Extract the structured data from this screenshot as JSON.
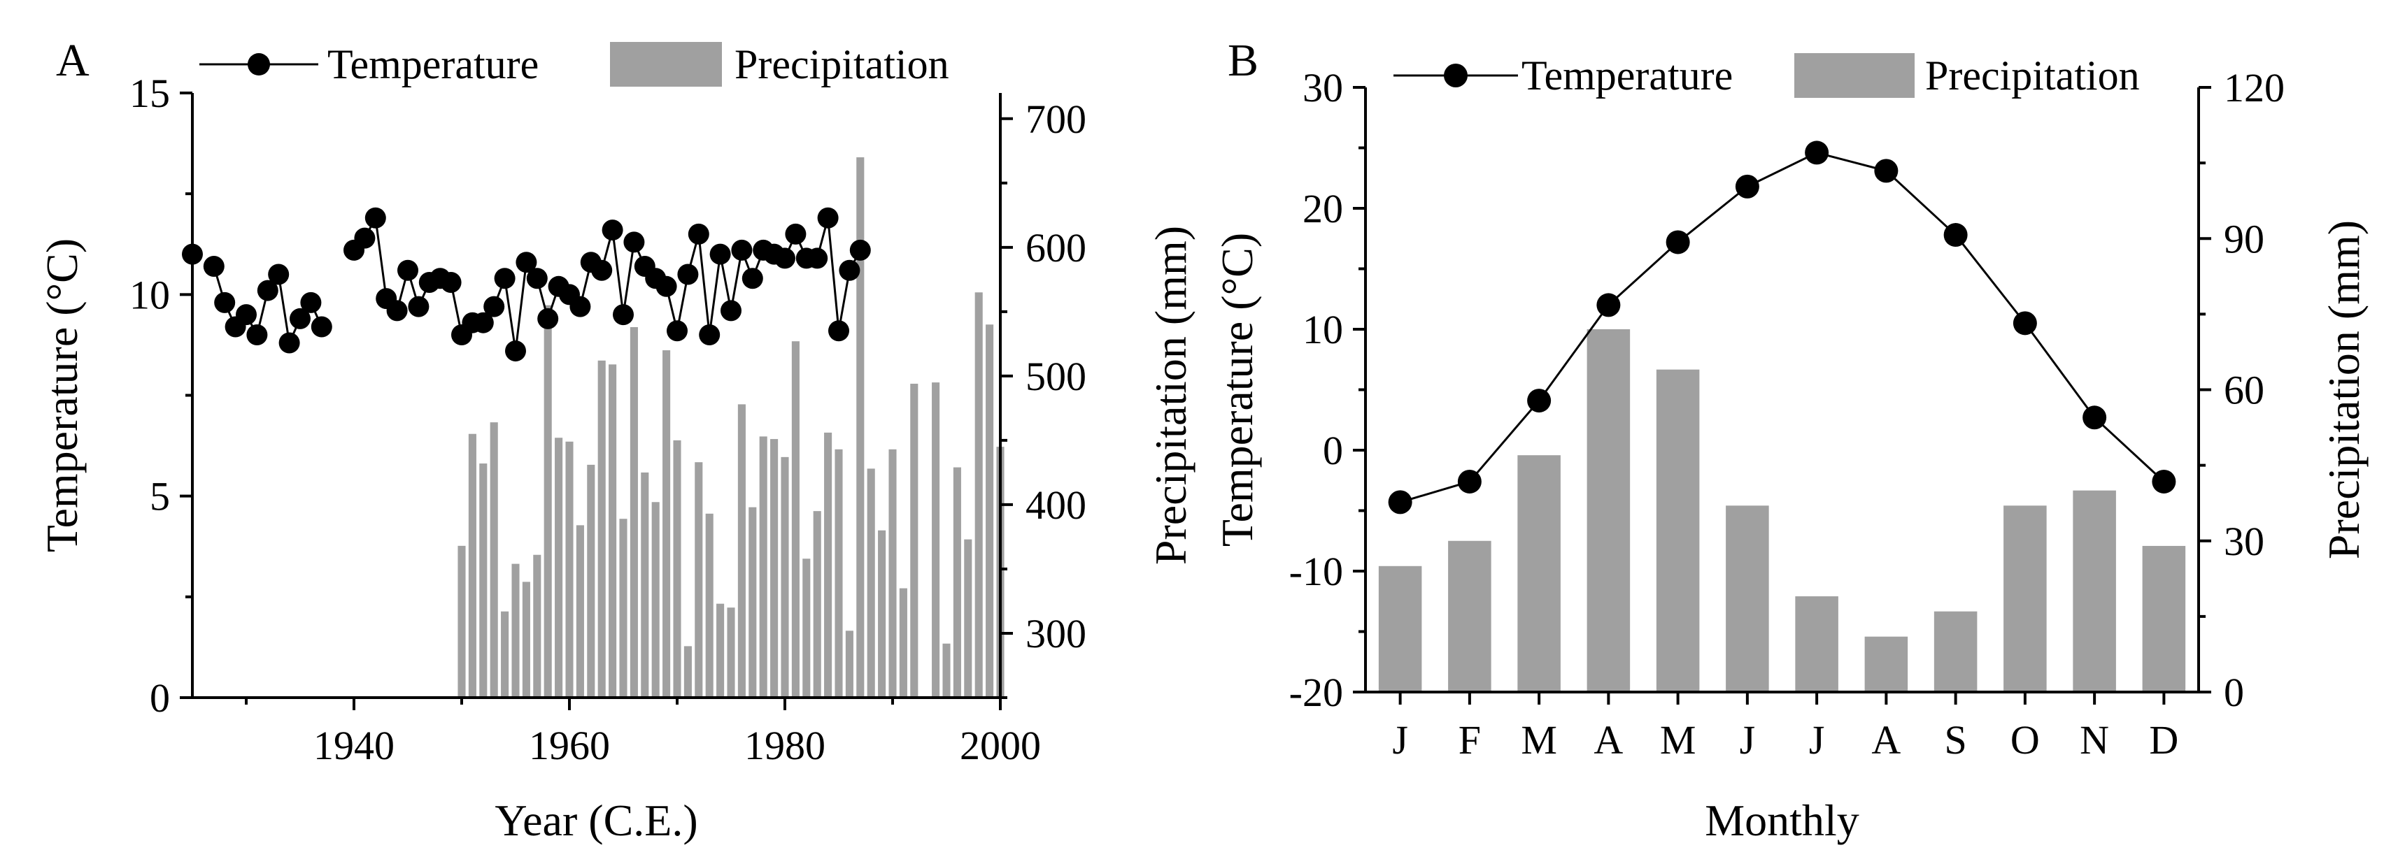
{
  "chart_data": [
    {
      "panel": "A",
      "type": "bar+line",
      "xlabel": "Year (C.E.)",
      "ylabel": "Temperature (°C)",
      "y2label": "Precipitation (mm)",
      "xlim": [
        1925,
        2000
      ],
      "ylim": [
        0,
        15
      ],
      "y2lim": [
        250,
        720
      ],
      "xticks": [
        1940,
        1960,
        1980,
        2000
      ],
      "yticks": [
        0,
        5,
        10,
        15
      ],
      "y2ticks": [
        300,
        400,
        500,
        600,
        700
      ],
      "legend": [
        {
          "label": "Temperature",
          "style": "line-dot"
        },
        {
          "label": "Precipitation",
          "style": "bar"
        }
      ],
      "temperature": {
        "x": [
          1925,
          1927,
          1928,
          1929,
          1930,
          1931,
          1932,
          1933,
          1934,
          1935,
          1936,
          1937,
          1940,
          1941,
          1942,
          1943,
          1944,
          1945,
          1946,
          1947,
          1948,
          1949,
          1950,
          1951,
          1952,
          1953,
          1954,
          1955,
          1956,
          1957,
          1958,
          1959,
          1960,
          1961,
          1962,
          1963,
          1964,
          1965,
          1966,
          1967,
          1968,
          1969,
          1970,
          1971,
          1972,
          1973,
          1974,
          1975,
          1976,
          1977,
          1978,
          1979,
          1980,
          1981,
          1982,
          1983,
          1984,
          1985,
          1986,
          1987
        ],
        "y": [
          11.0,
          10.7,
          9.8,
          9.2,
          9.5,
          9.0,
          10.1,
          10.5,
          8.8,
          9.4,
          9.8,
          9.2,
          11.1,
          11.4,
          11.9,
          9.9,
          9.6,
          10.6,
          9.7,
          10.3,
          10.4,
          10.3,
          9.0,
          9.3,
          9.3,
          9.7,
          10.4,
          8.6,
          10.8,
          10.4,
          9.4,
          10.2,
          10.0,
          9.7,
          10.8,
          10.6,
          11.6,
          9.5,
          11.3,
          10.7,
          10.4,
          10.2,
          9.1,
          10.5,
          11.5,
          9.0,
          11.0,
          9.6,
          11.1,
          10.4,
          11.1,
          11.0,
          10.9,
          11.5,
          10.9,
          10.9,
          11.9,
          9.1,
          10.6,
          11.1
        ]
      },
      "precipitation": {
        "x": [
          1950,
          1951,
          1952,
          1953,
          1954,
          1955,
          1956,
          1957,
          1958,
          1959,
          1960,
          1961,
          1962,
          1963,
          1964,
          1965,
          1966,
          1967,
          1968,
          1969,
          1970,
          1971,
          1972,
          1973,
          1974,
          1975,
          1976,
          1977,
          1978,
          1979,
          1980,
          1981,
          1982,
          1983,
          1984,
          1985,
          1986,
          1987,
          1988,
          1989,
          1990,
          1991,
          1992,
          1993,
          1994,
          1995,
          1996,
          1997,
          1998,
          1999,
          2000
        ],
        "y": [
          368,
          455,
          432,
          464,
          317,
          354,
          340,
          361,
          555,
          452,
          449,
          384,
          431,
          512,
          509,
          389,
          538,
          425,
          402,
          520,
          450,
          290,
          433,
          393,
          323,
          320,
          478,
          398,
          453,
          451,
          437,
          527,
          358,
          395,
          456,
          443,
          302,
          670,
          428,
          380,
          443,
          335,
          494,
          null,
          495,
          292,
          429,
          373,
          565,
          540,
          445
        ]
      }
    },
    {
      "panel": "B",
      "type": "bar+line",
      "xlabel": "Monthly",
      "ylabel": "Temperature (°C)",
      "y2label": "Precipitation (mm)",
      "ylim": [
        -20,
        30
      ],
      "y2lim": [
        0,
        120
      ],
      "yticks": [
        -20,
        -10,
        0,
        10,
        20,
        30
      ],
      "y2ticks": [
        0,
        30,
        60,
        90,
        120
      ],
      "categories": [
        "J",
        "F",
        "M",
        "A",
        "M",
        "J",
        "J",
        "A",
        "S",
        "O",
        "N",
        "D"
      ],
      "legend": [
        {
          "label": "Temperature",
          "style": "line-dot"
        },
        {
          "label": "Precipitation",
          "style": "bar"
        }
      ],
      "temperature": [
        -4.3,
        -2.6,
        4.1,
        12.0,
        17.2,
        21.8,
        24.6,
        23.1,
        17.8,
        10.5,
        2.7,
        -2.6
      ],
      "precipitation": [
        25,
        30,
        47,
        72,
        64,
        37,
        19,
        11,
        16,
        37,
        40,
        29
      ]
    }
  ]
}
